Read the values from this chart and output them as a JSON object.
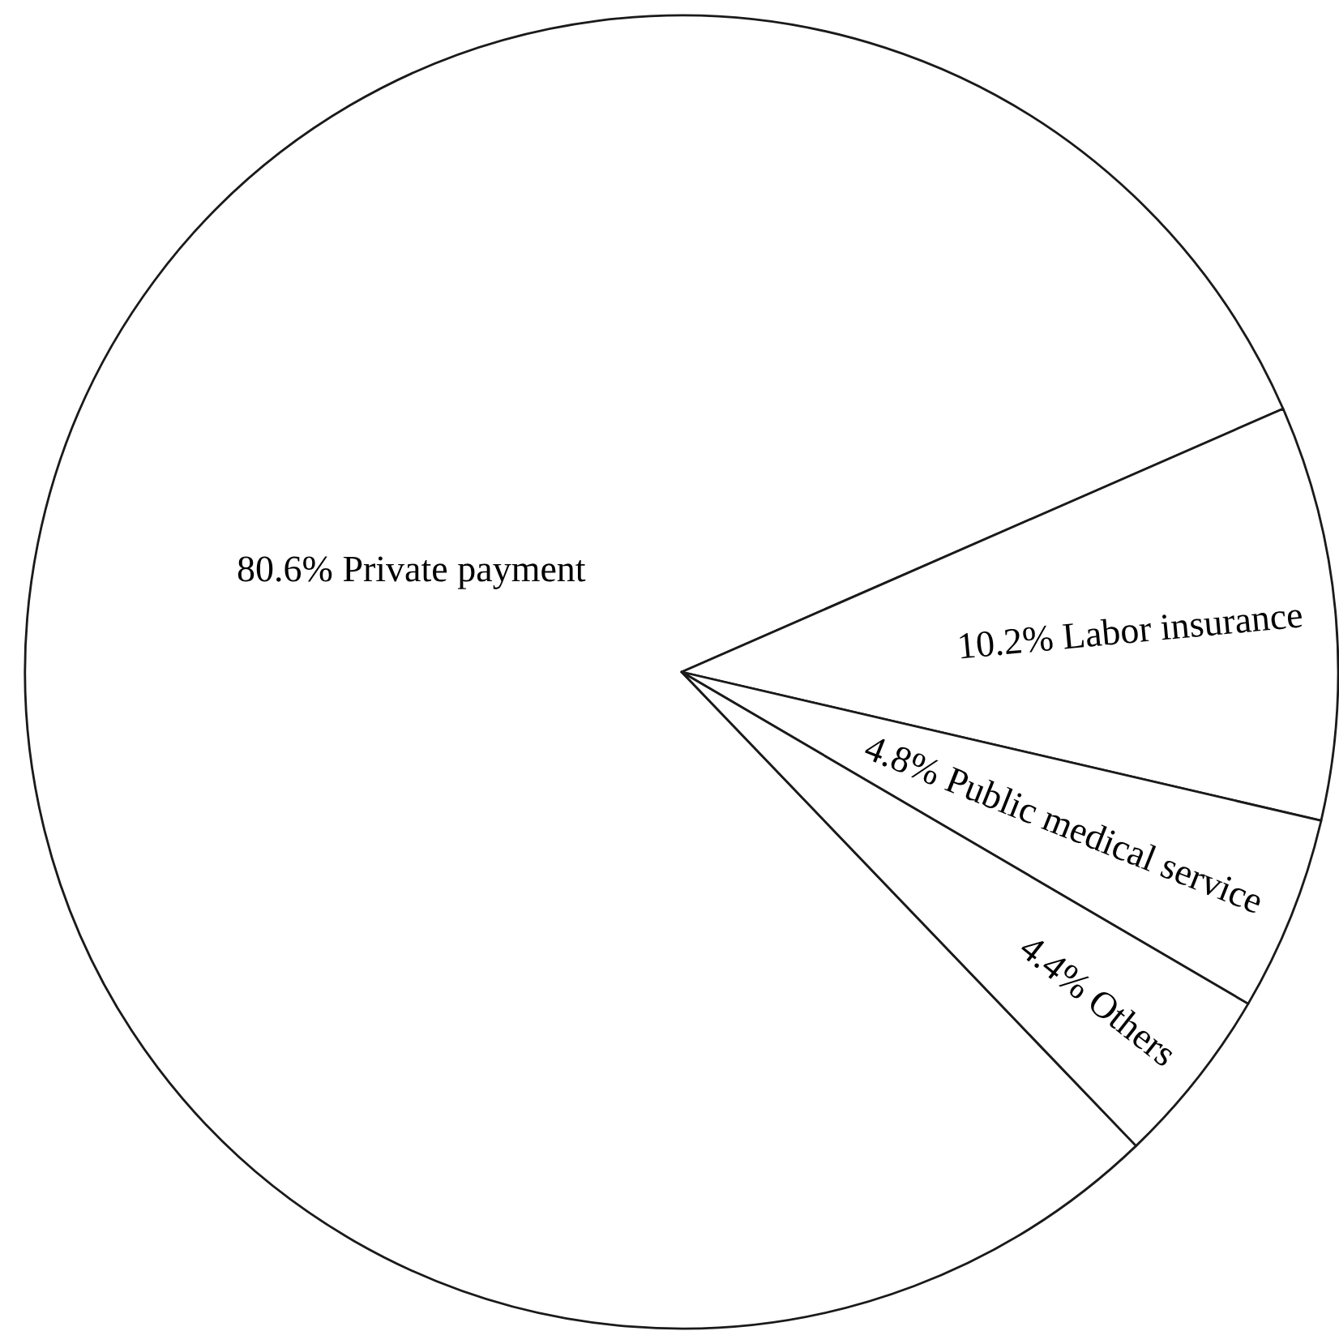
{
  "chart_data": {
    "type": "pie",
    "categories": [
      "Private payment",
      "Labor insurance",
      "Public medical service",
      "Others"
    ],
    "values": [
      80.6,
      10.2,
      4.8,
      4.4
    ],
    "colors": [
      "#ffffff",
      "#ffffff",
      "#ffffff",
      "#ffffff"
    ],
    "value_labels": [
      "80.6%",
      "10.2%",
      "4.8%",
      "4.4%"
    ]
  }
}
